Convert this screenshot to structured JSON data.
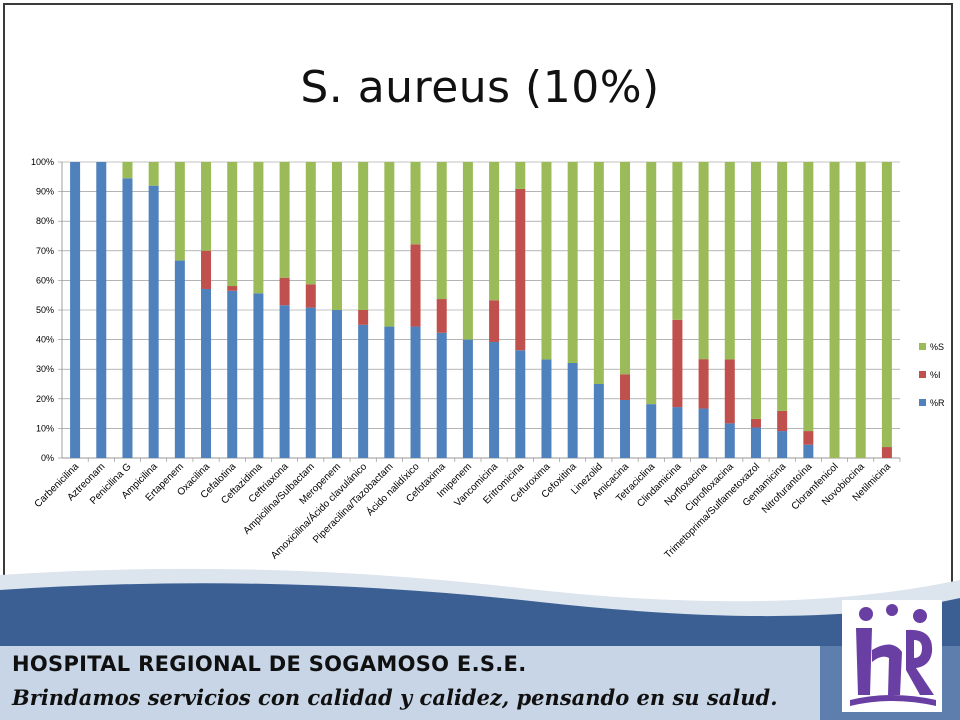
{
  "slide": {
    "title": "S. aureus (10%)"
  },
  "footer": {
    "hospital_name": "HOSPITAL REGIONAL DE SOGAMOSO E.S.E.",
    "slogan": "Brindamos servicios con calidad y calidez, pensando en su salud.",
    "band_color": "#3b5f93"
  },
  "chart_data": {
    "type": "bar",
    "stacked": true,
    "percent": true,
    "categories": [
      "Carbenicilina",
      "Aztreonam",
      "Penicilina G",
      "Ampicilina",
      "Ertapenem",
      "Oxacilina",
      "Cefalotina",
      "Ceftazidima",
      "Ceftriaxona",
      "Ampicilina/Sulbactam",
      "Meropenem",
      "Amoxicilina/Ácido clavulánico",
      "Piperacilina/Tazobactam",
      "Ácido nalidíxico",
      "Cefotaxima",
      "Imipenem",
      "Vancomicina",
      "Eritromicina",
      "Cefuroxima",
      "Cefoxitina",
      "Linezolid",
      "Amicacina",
      "Tetraciclina",
      "Clindamicina",
      "Norfloxacina",
      "Ciprofloxacina",
      "Trimetoprima/Sulfametoxazol",
      "Gentamicina",
      "Nitrofurantoína",
      "Cloramfenicol",
      "Novobiocina",
      "Netilmicina"
    ],
    "series": [
      {
        "name": "%R",
        "color": "#4f81bd",
        "values": [
          100,
          100,
          94.5,
          92,
          66.7,
          57.1,
          56.5,
          55.6,
          51.6,
          50.8,
          50,
          45,
          44.4,
          44.4,
          42.3,
          40,
          39.2,
          36.4,
          33.3,
          32.1,
          25,
          19.6,
          18.2,
          17.2,
          16.7,
          11.7,
          10.3,
          9.1,
          4.5,
          0,
          0,
          0
        ]
      },
      {
        "name": "%I",
        "color": "#c0504d",
        "values": [
          0,
          0,
          0,
          0,
          0,
          12.9,
          1.6,
          0,
          9.3,
          7.9,
          0,
          5,
          0,
          27.8,
          11.4,
          0,
          14.1,
          54.5,
          0,
          0,
          0,
          8.7,
          0,
          29.5,
          16.7,
          21.6,
          2.9,
          6.8,
          4.6,
          0,
          0,
          3.7
        ]
      },
      {
        "name": "%S",
        "color": "#9bbb59",
        "values": [
          0,
          0,
          5.5,
          8,
          33.3,
          30,
          41.9,
          44.4,
          39.1,
          41.3,
          50,
          50,
          55.6,
          27.8,
          46.3,
          60,
          46.7,
          9.1,
          66.7,
          67.9,
          75,
          71.7,
          81.8,
          53.3,
          66.6,
          66.7,
          86.8,
          84.1,
          90.9,
          100,
          100,
          96.3
        ]
      }
    ],
    "legend_order": [
      "%S",
      "%I",
      "%R"
    ],
    "y_ticks": [
      "0%",
      "10%",
      "20%",
      "30%",
      "40%",
      "50%",
      "60%",
      "70%",
      "80%",
      "90%",
      "100%"
    ],
    "ylim": [
      0,
      100
    ],
    "grid": true,
    "legend_position": "right"
  }
}
